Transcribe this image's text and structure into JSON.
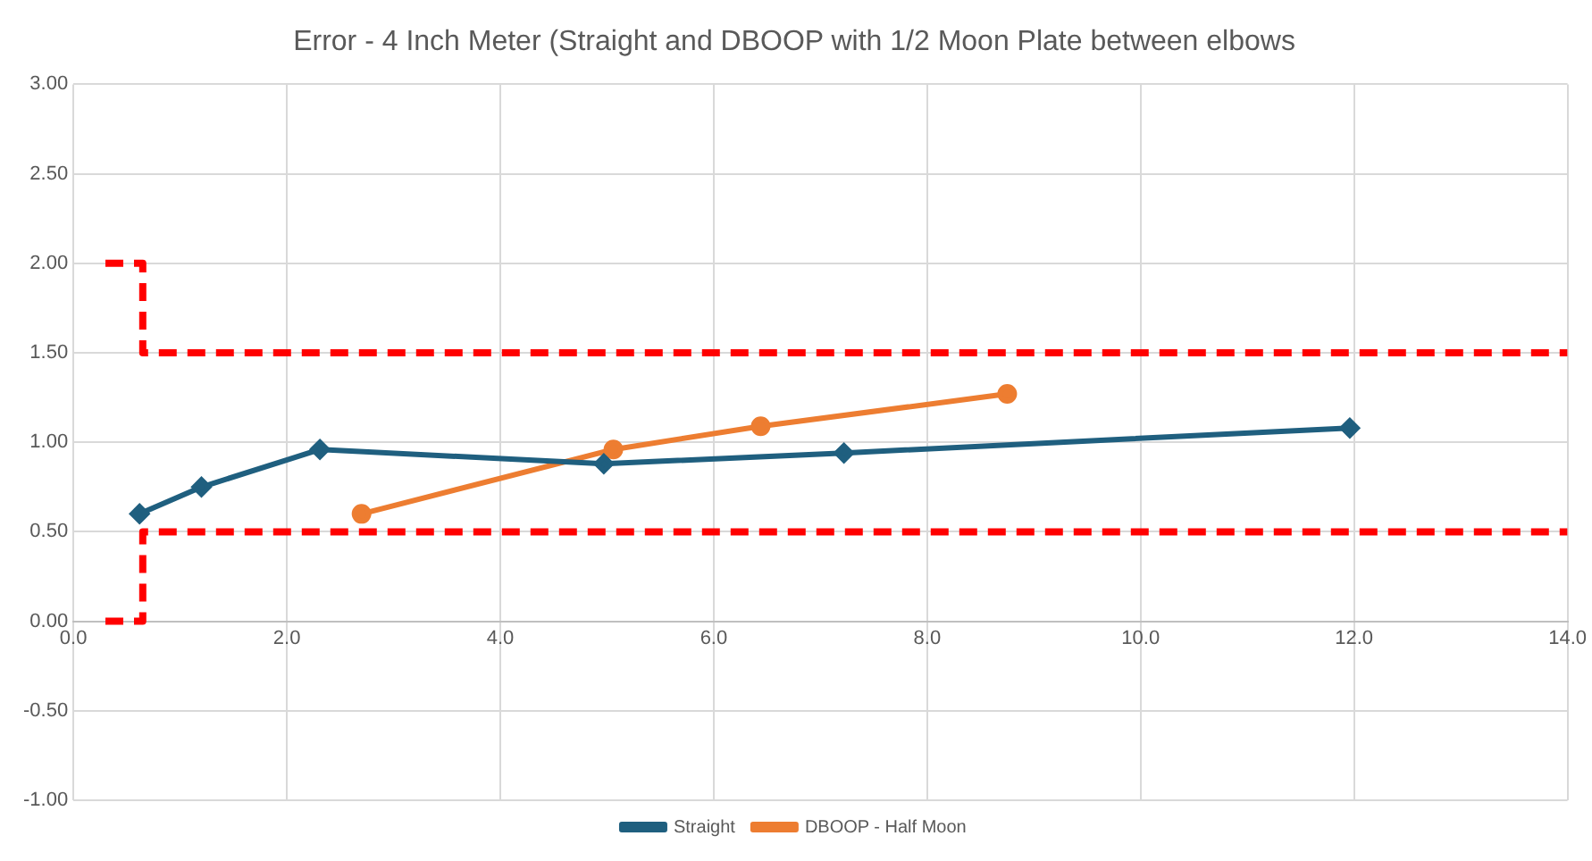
{
  "chart_data": {
    "type": "line",
    "title": "Error - 4 Inch Meter (Straight and DBOOP with 1/2 Moon Plate between elbows",
    "series": [
      {
        "name": "Straight",
        "color": "#1f5f7f",
        "marker": "diamond",
        "x": [
          0.62,
          1.2,
          2.31,
          4.97,
          7.22,
          11.96
        ],
        "values": [
          0.6,
          0.75,
          0.96,
          0.88,
          0.94,
          1.08
        ]
      },
      {
        "name": "DBOOP - Half Moon",
        "color": "#ed7d31",
        "marker": "circle",
        "x": [
          2.7,
          5.06,
          6.44,
          8.75
        ],
        "values": [
          0.6,
          0.96,
          1.09,
          1.27
        ]
      },
      {
        "color": "#ff0000",
        "marker": "none",
        "line_style": "dashed",
        "x": [
          0.3,
          0.65,
          0.65,
          14
        ],
        "values": [
          2.0,
          2.0,
          1.5,
          1.5
        ]
      },
      {
        "color": "#ff0000",
        "marker": "none",
        "line_style": "dashed",
        "x": [
          0.3,
          0.65,
          0.65,
          14
        ],
        "values": [
          0,
          0,
          0.5,
          0.5
        ]
      }
    ],
    "xlim": [
      0,
      14
    ],
    "xticks": [
      {
        "value": 0,
        "label": "0.0"
      },
      {
        "value": 2,
        "label": "2.0"
      },
      {
        "value": 4,
        "label": "4.0"
      },
      {
        "value": 6,
        "label": "6.0"
      },
      {
        "value": 8,
        "label": "8.0"
      },
      {
        "value": 10,
        "label": "10.0"
      },
      {
        "value": 12,
        "label": "12.0"
      },
      {
        "value": 14,
        "label": "14.0"
      }
    ],
    "ylim": [
      -1,
      3
    ],
    "yticks": [
      {
        "value": -1,
        "label": "-1.00"
      },
      {
        "value": -0.5,
        "label": "-0.50"
      },
      {
        "value": 0,
        "label": "0.00"
      },
      {
        "value": 0.5,
        "label": "0.50"
      },
      {
        "value": 1,
        "label": "1.00"
      },
      {
        "value": 1.5,
        "label": "1.50"
      },
      {
        "value": 2,
        "label": "2.00"
      },
      {
        "value": 2.5,
        "label": "2.50"
      },
      {
        "value": 3,
        "label": "3.00"
      }
    ],
    "grid": true,
    "legend": "bottom"
  }
}
